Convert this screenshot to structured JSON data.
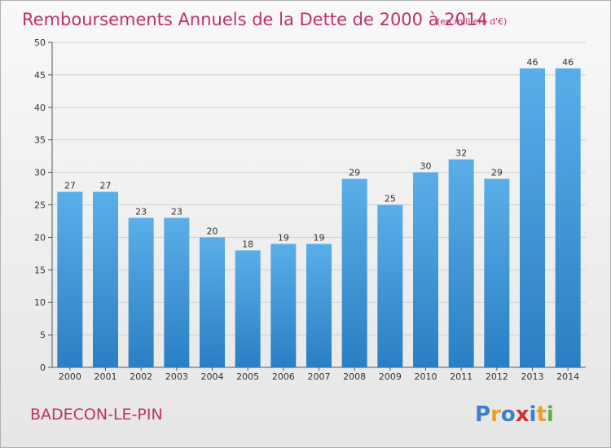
{
  "chart_data": {
    "type": "bar",
    "title": "Remboursements Annuels de la Dette de 2000 à 2014",
    "subtitle": "(en milliers d'€)",
    "categories": [
      "2000",
      "2001",
      "2002",
      "2003",
      "2004",
      "2005",
      "2006",
      "2007",
      "2008",
      "2009",
      "2010",
      "2011",
      "2012",
      "2013",
      "2014"
    ],
    "values": [
      27,
      27,
      23,
      23,
      20,
      18,
      19,
      19,
      29,
      25,
      30,
      32,
      29,
      46,
      46
    ],
    "ylim": [
      0,
      50
    ],
    "yticks": [
      0,
      5,
      10,
      15,
      20,
      25,
      30,
      35,
      40,
      45,
      50
    ],
    "xlabel": "",
    "ylabel": "",
    "grid": true,
    "colors": {
      "bar_top": "#5aaee8",
      "bar_bottom": "#2a7fc4",
      "title": "#c0306a"
    }
  },
  "commune": "BADECON-LE-PIN",
  "logo": {
    "text": "Proxiti",
    "letter_colors": [
      "#3a7fd0",
      "#e8a020",
      "#3a7fd0",
      "#d03030",
      "#3a7fd0",
      "#e8a020",
      "#60b040"
    ]
  }
}
